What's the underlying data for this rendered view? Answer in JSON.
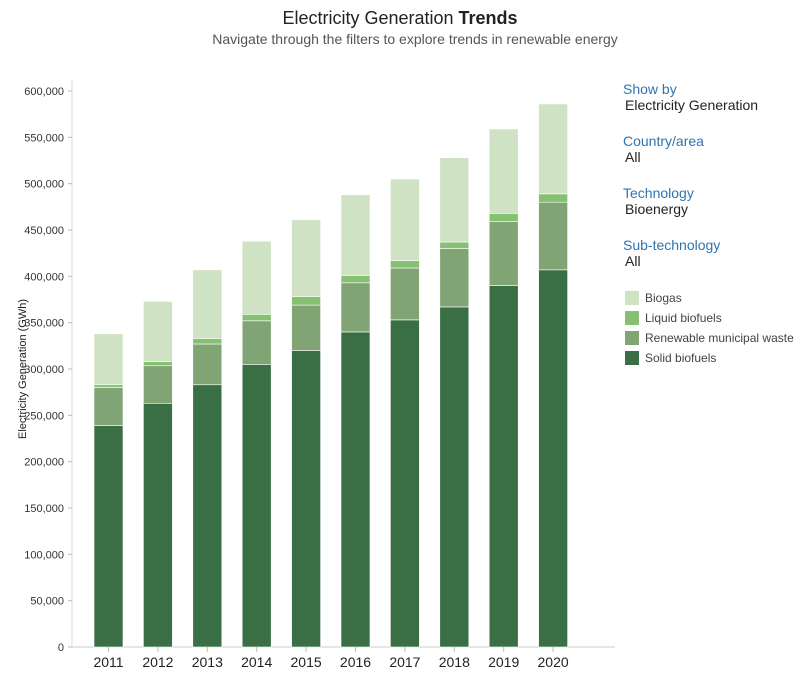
{
  "header": {
    "title_regular": "Electricity Generation",
    "title_bold": "Trends",
    "subtitle": "Navigate through the filters to explore trends in renewable energy"
  },
  "filters": [
    {
      "label": "Show by",
      "value": "Electricity Generation"
    },
    {
      "label": "Country/area",
      "value": "All"
    },
    {
      "label": "Technology",
      "value": "Bioenergy"
    },
    {
      "label": "Sub-technology",
      "value": "All"
    }
  ],
  "chart_data": {
    "type": "bar",
    "stacked": true,
    "ylabel": "Electricity Generation (GWh)",
    "xlabel": "",
    "ylim": [
      0,
      600000
    ],
    "yticks": [
      0,
      50000,
      100000,
      150000,
      200000,
      250000,
      300000,
      350000,
      400000,
      450000,
      500000,
      550000,
      600000
    ],
    "ytick_labels": [
      "0",
      "50,000",
      "100,000",
      "150,000",
      "200,000",
      "250,000",
      "300,000",
      "350,000",
      "400,000",
      "450,000",
      "500,000",
      "550,000",
      "600,000"
    ],
    "categories": [
      "2011",
      "2012",
      "2013",
      "2014",
      "2015",
      "2016",
      "2017",
      "2018",
      "2019",
      "2020"
    ],
    "grid": false,
    "legend_position": "right",
    "series": [
      {
        "name": "Solid biofuels",
        "color": "#3a6e44",
        "values": [
          239000,
          263000,
          283000,
          305000,
          320000,
          340000,
          353000,
          367000,
          390000,
          407000
        ]
      },
      {
        "name": "Renewable municipal waste",
        "color": "#80a474",
        "values": [
          41000,
          40500,
          44000,
          47000,
          49000,
          53000,
          56000,
          63000,
          69000,
          73000
        ]
      },
      {
        "name": "Liquid biofuels",
        "color": "#86c072",
        "values": [
          3000,
          4500,
          6000,
          7000,
          9000,
          8000,
          8000,
          7000,
          9000,
          9000
        ]
      },
      {
        "name": "Biogas",
        "color": "#cfe3c4",
        "values": [
          55000,
          65000,
          74000,
          79000,
          83000,
          87000,
          88000,
          91000,
          91000,
          97000
        ]
      }
    ],
    "legend_order": [
      "Biogas",
      "Liquid biofuels",
      "Renewable municipal waste",
      "Solid biofuels"
    ]
  }
}
